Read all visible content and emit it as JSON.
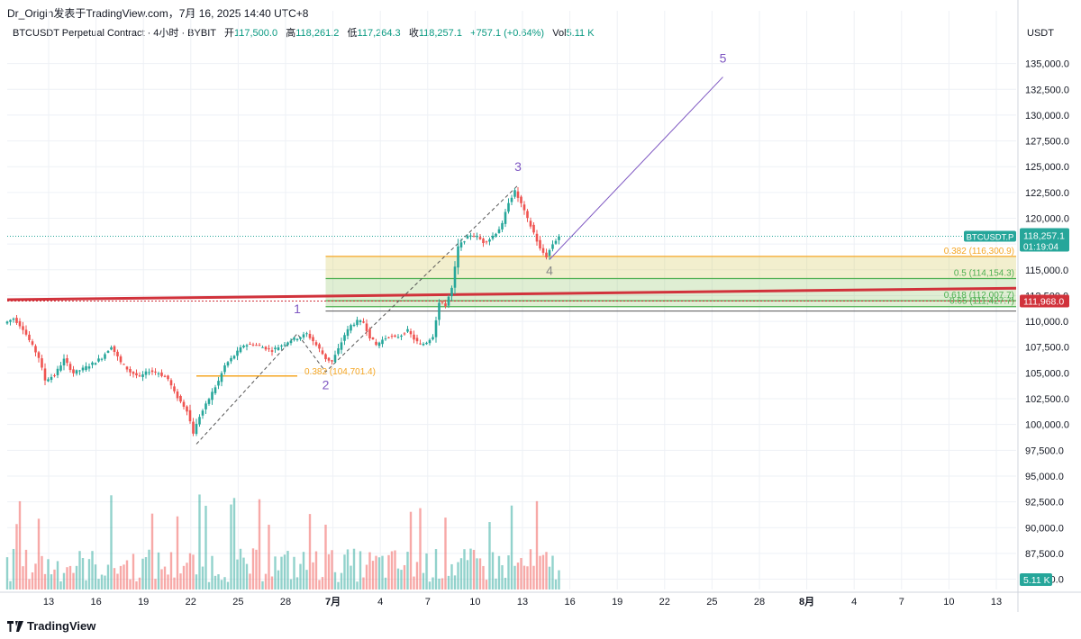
{
  "header": {
    "author_line": "Dr_Origin发表于TradingView.com，7月 16, 2025 14:40 UTC+8"
  },
  "legend": {
    "symbol": "BTCUSDT Perpetual Contract · 4小时 · BYBIT",
    "open_label": "开",
    "open": "117,500.0",
    "high_label": "高",
    "high": "118,261.2",
    "low_label": "低",
    "low": "117,264.3",
    "close_label": "收",
    "close": "118,257.1",
    "change": "+757.1 (+0.64%)",
    "vol_label": "Vol",
    "vol": "5.11 K"
  },
  "axis": {
    "currency": "USDT"
  },
  "footer": {
    "brand": "TradingView"
  },
  "colors": {
    "up": "#26a69a",
    "down": "#ef5350",
    "fib_orange": "#f5a623",
    "fib_green": "#4caf50",
    "trendline": "#d1323b",
    "wave": "#7e57c2"
  },
  "chart_data": {
    "type": "candlestick",
    "symbol": "BTCUSDT Perpetual Contract",
    "interval": "4小时",
    "exchange": "BYBIT",
    "ylim": [
      84000,
      137500
    ],
    "y_ticks": [
      85000,
      87500,
      90000,
      92500,
      95000,
      97500,
      100000,
      102500,
      105000,
      107500,
      110000,
      112500,
      115000,
      117500,
      120000,
      122500,
      125000,
      127500,
      130000,
      132500,
      135000
    ],
    "y_tick_labels": [
      "85,000.0",
      "87,500.0",
      "90,000.0",
      "92,500.0",
      "95,000.0",
      "97,500.0",
      "100,000.0",
      "102,500.0",
      "105,000.0",
      "107,500.0",
      "110,000.0",
      "112,500.0",
      "115,000.0",
      "117,500.0",
      "120,000.0",
      "122,500.0",
      "125,000.0",
      "127,500.0",
      "130,000.0",
      "132,500.0",
      "135,000.0"
    ],
    "x_ticks": [
      "13",
      "16",
      "19",
      "22",
      "25",
      "28",
      "7月",
      "4",
      "7",
      "10",
      "13",
      "16",
      "19",
      "22",
      "25",
      "28",
      "8月",
      "4",
      "7",
      "10",
      "13"
    ],
    "last_price": {
      "label": "BTCUSDT.P",
      "price": "118,257.1",
      "countdown": "01:19:04",
      "value": 118257.1
    },
    "trend_price": {
      "price": "111,968.0",
      "value": 111968
    },
    "volume_label": "5.11 K",
    "path": [
      [
        0,
        109800
      ],
      [
        3,
        110300
      ],
      [
        6,
        109300
      ],
      [
        9,
        107600
      ],
      [
        11,
        106500
      ],
      [
        13,
        104300
      ],
      [
        16,
        104800
      ],
      [
        19,
        106300
      ],
      [
        22,
        105000
      ],
      [
        25,
        105400
      ],
      [
        28,
        105900
      ],
      [
        31,
        106500
      ],
      [
        34,
        107600
      ],
      [
        37,
        106000
      ],
      [
        40,
        105100
      ],
      [
        43,
        104600
      ],
      [
        46,
        105200
      ],
      [
        49,
        105000
      ],
      [
        52,
        104400
      ],
      [
        54,
        103100
      ],
      [
        56,
        102200
      ],
      [
        58,
        101400
      ],
      [
        60,
        99200
      ],
      [
        62,
        100800
      ],
      [
        64,
        101900
      ],
      [
        66,
        103100
      ],
      [
        68,
        104200
      ],
      [
        70,
        105700
      ],
      [
        73,
        106700
      ],
      [
        76,
        107700
      ],
      [
        79,
        107800
      ],
      [
        82,
        107500
      ],
      [
        85,
        107200
      ],
      [
        88,
        107700
      ],
      [
        91,
        108200
      ],
      [
        94,
        108500
      ],
      [
        96,
        108800
      ],
      [
        98,
        108100
      ],
      [
        100,
        107300
      ],
      [
        102,
        106400
      ],
      [
        104,
        106100
      ],
      [
        106,
        107300
      ],
      [
        108,
        108700
      ],
      [
        110,
        109600
      ],
      [
        112,
        110000
      ],
      [
        114,
        109900
      ],
      [
        116,
        108500
      ],
      [
        118,
        107700
      ],
      [
        120,
        108200
      ],
      [
        122,
        108600
      ],
      [
        124,
        108400
      ],
      [
        126,
        108700
      ],
      [
        128,
        109100
      ],
      [
        130,
        108300
      ],
      [
        132,
        107700
      ],
      [
        134,
        108000
      ],
      [
        136,
        108600
      ],
      [
        138,
        111800
      ],
      [
        140,
        111600
      ],
      [
        142,
        113200
      ],
      [
        144,
        117200
      ],
      [
        146,
        117900
      ],
      [
        148,
        118400
      ],
      [
        150,
        118200
      ],
      [
        152,
        117700
      ],
      [
        154,
        118000
      ],
      [
        156,
        118600
      ],
      [
        158,
        119400
      ],
      [
        160,
        121600
      ],
      [
        162,
        122600
      ],
      [
        164,
        121400
      ],
      [
        166,
        119900
      ],
      [
        168,
        118600
      ],
      [
        170,
        117000
      ],
      [
        172,
        116300
      ],
      [
        174,
        117500
      ],
      [
        176,
        118257
      ]
    ],
    "annotations": {
      "wave_labels": [
        {
          "text": "1",
          "x": 92,
          "y": 110800
        },
        {
          "text": "2",
          "x": 101,
          "y": 103400
        },
        {
          "text": "3",
          "x": 162,
          "y": 124600
        },
        {
          "text": "4",
          "x": 172,
          "y": 114500
        },
        {
          "text": "5",
          "x": 227,
          "y": 135100
        }
      ],
      "wave_lines": [
        {
          "style": "dashed",
          "points": [
            [
              60,
              98100
            ],
            [
              92,
              108800
            ],
            [
              101,
              105100
            ],
            [
              162,
              123200
            ]
          ]
        },
        {
          "style": "solid",
          "points": [
            [
              172,
              116000
            ],
            [
              227,
              133700
            ]
          ]
        }
      ],
      "fib_levels": [
        {
          "label": "0.382 (116,300.9)",
          "value": 116300.9,
          "color": "#f5a623"
        },
        {
          "label": "0.5 (114,154.3)",
          "value": 114154.3,
          "color": "#4caf50"
        },
        {
          "label": "0.618 (112,007.7)",
          "value": 112007.7,
          "color": "#4caf50"
        },
        {
          "label": "0.65 (111,427.7)",
          "value": 111427.7,
          "color": "#4caf50"
        }
      ],
      "fib_zone_start_x": 101,
      "fib_left": {
        "label": "0.382 (104,701.4)",
        "value": 104701.4,
        "x1": 60,
        "x2": 92
      },
      "trendline": {
        "x1": 0,
        "y1": 112100,
        "x2": 300,
        "y2": 113150
      }
    }
  }
}
